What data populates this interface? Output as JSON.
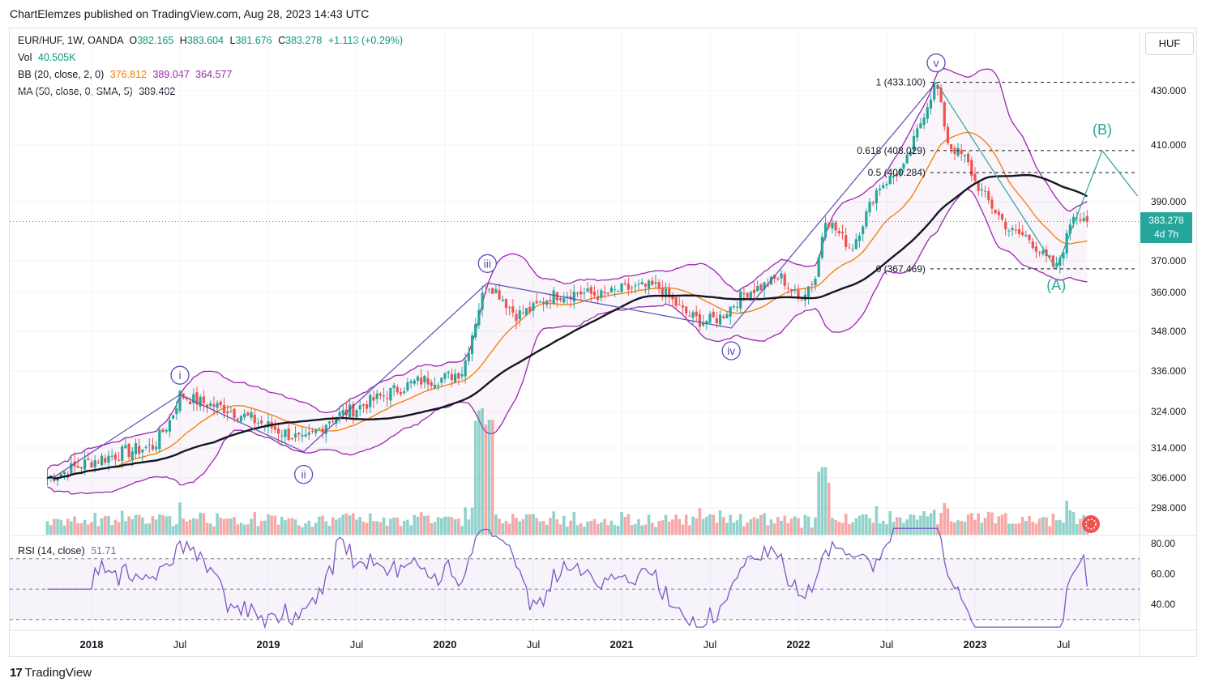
{
  "header": {
    "publisher": "ChartElemzes published on TradingView.com, Aug 28, 2023 14:43 UTC"
  },
  "legend": {
    "symbol": "EUR/HUF, 1W, OANDA",
    "ohlc": {
      "open_label": "O",
      "open": "382.165",
      "high_label": "H",
      "high": "383.604",
      "low_label": "L",
      "low": "381.676",
      "close_label": "C",
      "close": "383.278",
      "change": "+1.113 (+0.29%)"
    },
    "vol_label": "Vol",
    "vol_value": "40.505K",
    "bb_label": "BB (20, close, 2, 0)",
    "bb_basis": "376.812",
    "bb_upper": "389.047",
    "bb_lower": "364.577",
    "ma_label": "MA (50, close, 0, SMA, 5)",
    "ma_value": "389.402",
    "rsi_label": "RSI (14, close)",
    "rsi_value": "51.71"
  },
  "currency_button": "HUF",
  "last_price": {
    "value": "383.278",
    "countdown": "4d 7h"
  },
  "footer": {
    "logo": "TradingView"
  },
  "colors": {
    "up": "#26a69a",
    "down": "#ef5350",
    "bb_band": "#9c27b0",
    "bb_basis": "#f57c00",
    "ma": "#131722",
    "wave": "#5b4cb5",
    "corrective": "#26a69a",
    "rsi": "#7e57c2"
  },
  "chart_data": {
    "type": "candlestick",
    "title": "EUR/HUF, 1W, OANDA",
    "price_ticks": [
      430.0,
      410.0,
      390.0,
      370.0,
      360.0,
      348.0,
      336.0,
      324.0,
      314.0,
      306.0,
      298.0
    ],
    "price_tick_labels": [
      "430.000",
      "410.000",
      "390.000",
      "370.000",
      "360.000",
      "348.000",
      "336.000",
      "324.000",
      "314.000",
      "306.000",
      "298.000"
    ],
    "rsi_ticks": [
      "80.00",
      "60.00",
      "40.00"
    ],
    "x_tick_labels": [
      "2018",
      "Jul",
      "2019",
      "Jul",
      "2020",
      "Jul",
      "2021",
      "Jul",
      "2022",
      "Jul",
      "2023",
      "Jul"
    ],
    "price_path": [
      [
        2017.75,
        306.0
      ],
      [
        2017.92,
        309.0
      ],
      [
        2018.0,
        310.5
      ],
      [
        2018.2,
        313.0
      ],
      [
        2018.35,
        314.5
      ],
      [
        2018.45,
        322.0
      ],
      [
        2018.5,
        329.0
      ],
      [
        2018.6,
        327.0
      ],
      [
        2018.75,
        325.0
      ],
      [
        2018.9,
        322.0
      ],
      [
        2019.0,
        320.0
      ],
      [
        2019.15,
        317.0
      ],
      [
        2019.2,
        315.5
      ],
      [
        2019.35,
        322.0
      ],
      [
        2019.5,
        325.0
      ],
      [
        2019.7,
        330.0
      ],
      [
        2019.85,
        333.0
      ],
      [
        2020.0,
        334.0
      ],
      [
        2020.1,
        336.0
      ],
      [
        2020.2,
        357.0
      ],
      [
        2020.24,
        363.0
      ],
      [
        2020.3,
        360.0
      ],
      [
        2020.4,
        353.0
      ],
      [
        2020.5,
        355.0
      ],
      [
        2020.6,
        359.0
      ],
      [
        2020.75,
        360.0
      ],
      [
        2020.9,
        359.0
      ],
      [
        2021.0,
        361.0
      ],
      [
        2021.2,
        362.0
      ],
      [
        2021.35,
        354.0
      ],
      [
        2021.45,
        351.0
      ],
      [
        2021.55,
        352.0
      ],
      [
        2021.7,
        360.0
      ],
      [
        2021.8,
        362.0
      ],
      [
        2021.9,
        365.0
      ],
      [
        2022.0,
        358.0
      ],
      [
        2022.1,
        365.0
      ],
      [
        2022.15,
        385.0
      ],
      [
        2022.3,
        374.0
      ],
      [
        2022.45,
        395.0
      ],
      [
        2022.6,
        402.0
      ],
      [
        2022.73,
        425.0
      ],
      [
        2022.78,
        433.1
      ],
      [
        2022.85,
        410.0
      ],
      [
        2022.95,
        405.0
      ],
      [
        2023.0,
        397.0
      ],
      [
        2023.1,
        388.0
      ],
      [
        2023.2,
        380.0
      ],
      [
        2023.3,
        378.0
      ],
      [
        2023.38,
        372.0
      ],
      [
        2023.46,
        367.5
      ],
      [
        2023.52,
        378.0
      ],
      [
        2023.55,
        386.0
      ],
      [
        2023.62,
        385.0
      ],
      [
        2023.64,
        383.278
      ]
    ],
    "bollinger": {
      "period": 20,
      "stddev": 2,
      "basis": 376.812,
      "upper": 389.047,
      "lower": 364.577
    },
    "moving_average": {
      "type": "SMA",
      "period": 50,
      "value": 389.402
    },
    "rsi": {
      "period": 14,
      "value": 51.71
    },
    "volume": {
      "last": "40.505K"
    },
    "fibonacci": [
      {
        "level": "1",
        "price": 433.1,
        "label": "1 (433.100)"
      },
      {
        "level": "0.618",
        "price": 408.029,
        "label": "0.618 (408.029)"
      },
      {
        "level": "0.5",
        "price": 400.284,
        "label": "0.5 (400.284)"
      },
      {
        "level": "0",
        "price": 367.469,
        "label": "0 (367.469)"
      }
    ],
    "elliott_waves": [
      {
        "label": "i",
        "date": 2018.5,
        "price": 329.0
      },
      {
        "label": "ii",
        "date": 2019.2,
        "price": 313.0
      },
      {
        "label": "iii",
        "date": 2020.24,
        "price": 363.0
      },
      {
        "label": "iv",
        "date": 2021.62,
        "price": 349.0
      },
      {
        "label": "v",
        "date": 2022.78,
        "price": 433.1
      }
    ],
    "corrective_waves": [
      {
        "label": "(A)",
        "date": 2023.46,
        "price": 367.5
      },
      {
        "label": "(B)",
        "date": 2023.72,
        "price": 408.0
      }
    ]
  }
}
